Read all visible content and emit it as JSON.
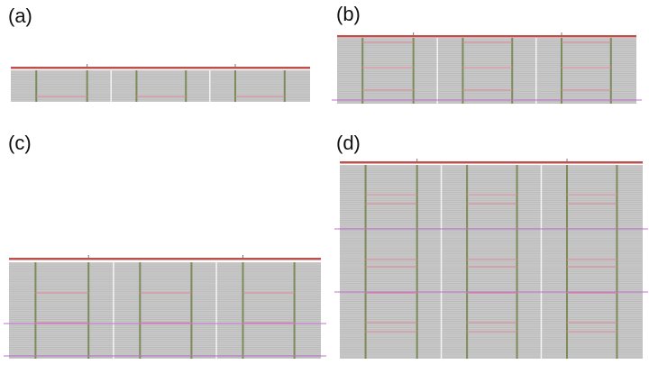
{
  "panels": [
    {
      "label": "(a)"
    },
    {
      "label": "(b)"
    },
    {
      "label": "(c)"
    },
    {
      "label": "(d)"
    }
  ],
  "colors": {
    "background": "#ffffff",
    "grid_fill": "#c9c9c9",
    "grid_line": "#b4b4b4",
    "column_olive": "#7d8a5a",
    "column_white": "#f4f4f4",
    "top_bar": "#c0504d",
    "pink_line": "#e08a9a",
    "magenta_line": "#c070d0"
  }
}
